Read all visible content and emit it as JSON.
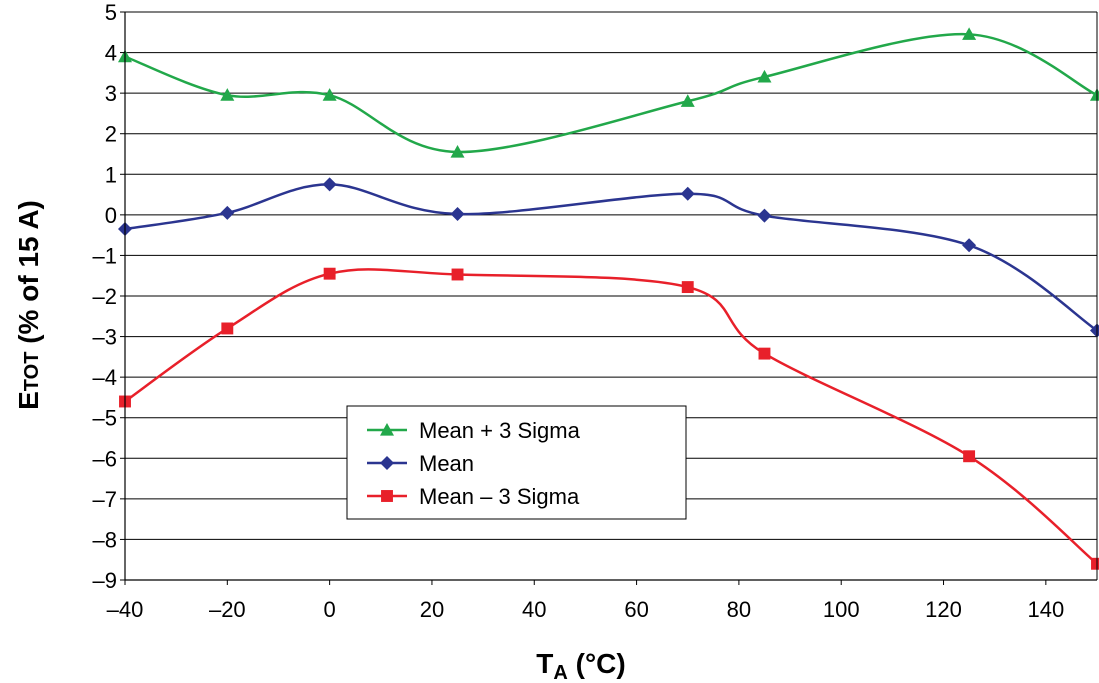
{
  "chart_data": {
    "type": "line",
    "title": "",
    "xlabel": {
      "main": "T",
      "sub": "A",
      "unit": " (°C)"
    },
    "ylabel": {
      "main": "E",
      "sub": "TOT",
      "unit": " (% of 15 A)"
    },
    "xlim": [
      -40,
      150
    ],
    "ylim": [
      -9,
      5
    ],
    "x_ticks": [
      -40,
      -20,
      0,
      20,
      40,
      60,
      80,
      100,
      120,
      140
    ],
    "x_tick_labels": [
      "–40",
      "–20",
      "0",
      "20",
      "40",
      "60",
      "80",
      "100",
      "120",
      "140"
    ],
    "y_ticks": [
      -9,
      -8,
      -7,
      -6,
      -5,
      -4,
      -3,
      -2,
      -1,
      0,
      1,
      2,
      3,
      4,
      5
    ],
    "y_tick_labels": [
      "–9",
      "–8",
      "–7",
      "–6",
      "–5",
      "–4",
      "–3",
      "–2",
      "–1",
      "0",
      "1",
      "2",
      "3",
      "4",
      "5"
    ],
    "grid": "horizontal",
    "legend_position": "center-left",
    "series": [
      {
        "name": "Mean + 3 Sigma",
        "color": "#22a84a",
        "marker": "triangle",
        "x": [
          -40,
          -20,
          0,
          25,
          70,
          85,
          125,
          150
        ],
        "y": [
          3.9,
          2.95,
          2.95,
          1.55,
          2.8,
          3.4,
          4.45,
          2.95
        ]
      },
      {
        "name": "Mean",
        "color": "#2b3590",
        "marker": "diamond",
        "x": [
          -40,
          -20,
          0,
          25,
          70,
          85,
          125,
          150
        ],
        "y": [
          -0.35,
          0.05,
          0.75,
          0.02,
          0.52,
          -0.02,
          -0.75,
          -2.85
        ]
      },
      {
        "name": "Mean – 3 Sigma",
        "color": "#e8202a",
        "marker": "square",
        "x": [
          -40,
          -20,
          0,
          25,
          70,
          85,
          125,
          150
        ],
        "y": [
          -4.6,
          -2.8,
          -1.45,
          -1.47,
          -1.78,
          -3.42,
          -5.95,
          -8.6
        ]
      }
    ]
  }
}
